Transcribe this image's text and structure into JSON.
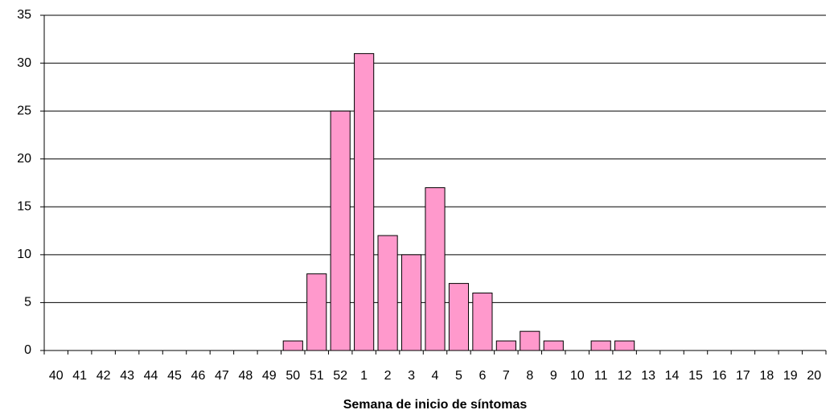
{
  "chart_data": {
    "type": "bar",
    "x_label": "Semana de inicio de síntomas",
    "categories": [
      "40",
      "41",
      "42",
      "43",
      "44",
      "45",
      "46",
      "47",
      "48",
      "49",
      "50",
      "51",
      "52",
      "1",
      "2",
      "3",
      "4",
      "5",
      "6",
      "7",
      "8",
      "9",
      "10",
      "11",
      "12",
      "13",
      "14",
      "15",
      "16",
      "17",
      "18",
      "19",
      "20"
    ],
    "values": [
      0,
      0,
      0,
      0,
      0,
      0,
      0,
      0,
      0,
      0,
      1,
      8,
      25,
      31,
      12,
      10,
      17,
      7,
      6,
      1,
      2,
      1,
      0,
      1,
      1,
      0,
      0,
      0,
      0,
      0,
      0,
      0,
      0
    ],
    "color": "#ff99cc",
    "ylim": [
      0,
      35
    ],
    "yticks": [
      0,
      5,
      10,
      15,
      20,
      25,
      30,
      35
    ],
    "grid": true
  }
}
